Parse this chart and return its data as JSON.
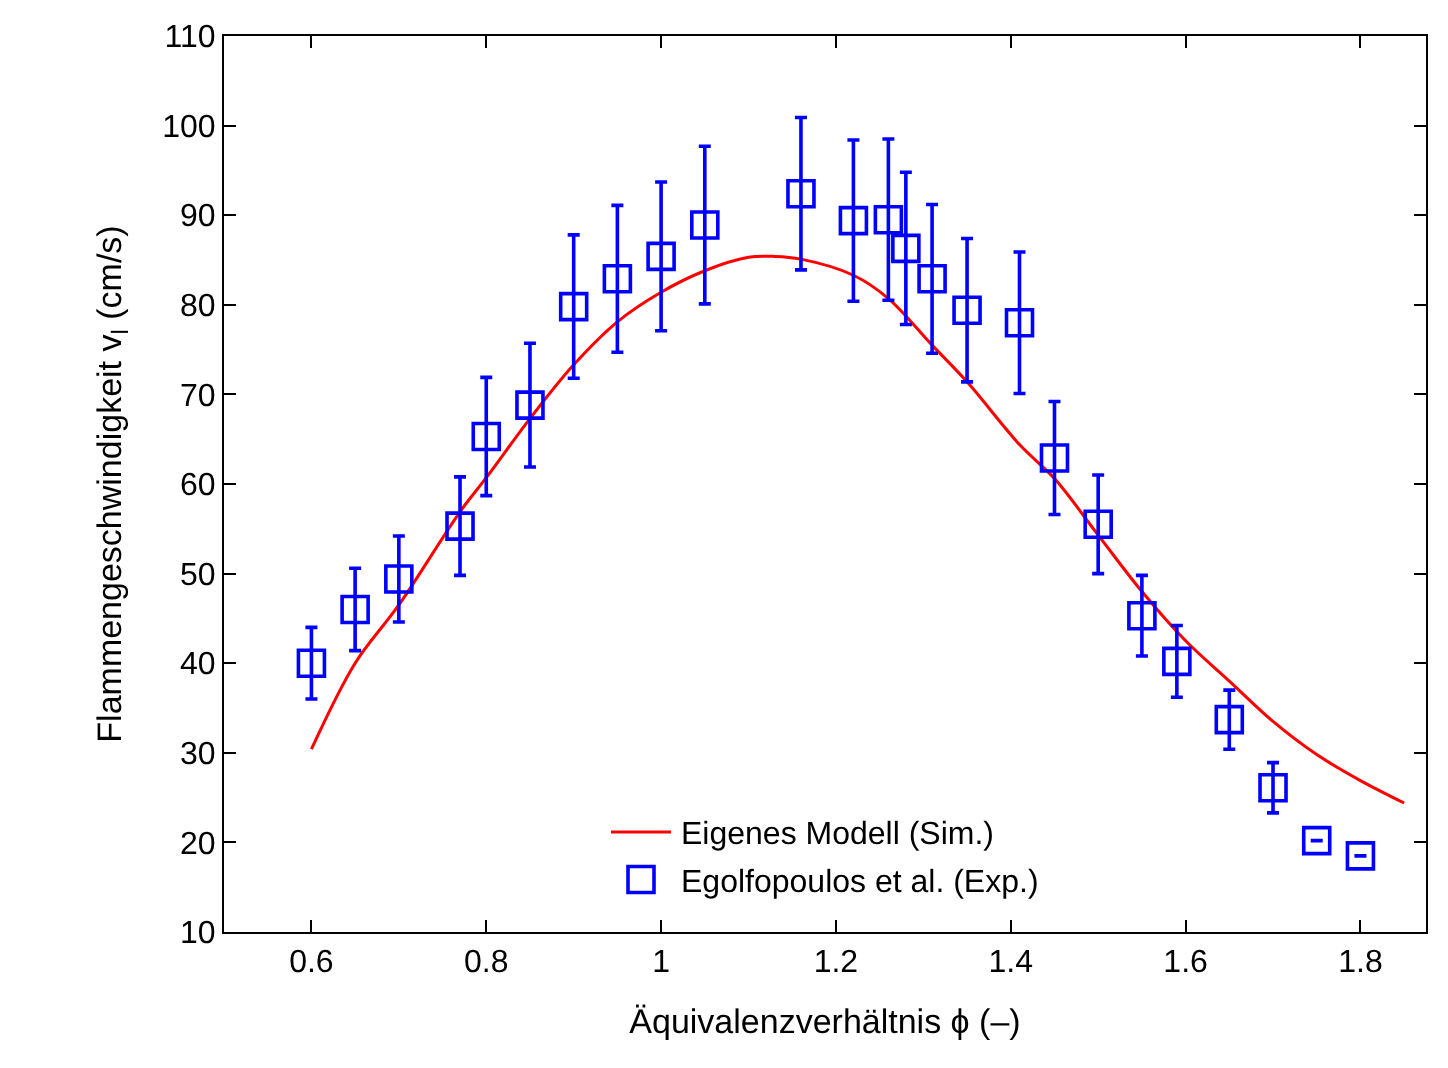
{
  "chart_data": {
    "type": "scatter",
    "xlabel": "Äquivalenzverhältnis ϕ (–)",
    "ylabel": "Flammengeschwindigkeit v$_{l}$ (cm/s)",
    "xlim": [
      0.5,
      1.875
    ],
    "xticks": [
      0.6,
      0.8,
      1,
      1.2,
      1.4,
      1.6,
      1.8
    ],
    "ylim": [
      10,
      110
    ],
    "yticks": [
      10,
      20,
      30,
      40,
      50,
      60,
      70,
      80,
      90,
      100,
      110
    ],
    "grid": false,
    "legend": "bottom",
    "series": [
      {
        "name": "Eigenes Modell (Sim.)",
        "type": "line",
        "color": "#ff0000",
        "marker": "none",
        "line_style": "solid",
        "x": [
          0.6,
          0.65,
          0.7,
          0.77,
          0.8,
          0.85,
          0.9,
          0.95,
          1.0,
          1.05,
          1.1,
          1.13,
          1.16,
          1.22,
          1.26,
          1.31,
          1.35,
          1.41,
          1.45,
          1.5,
          1.55,
          1.6,
          1.65,
          1.7,
          1.75,
          1.8,
          1.85
        ],
        "values": [
          30.4,
          40.0,
          46.5,
          56.9,
          60.7,
          67.3,
          73.3,
          78.1,
          81.4,
          83.8,
          85.3,
          85.4,
          85.1,
          83.3,
          80.7,
          75.5,
          71.4,
          64.4,
          60.6,
          54.3,
          48.0,
          42.5,
          38.0,
          33.5,
          29.8,
          26.9,
          24.4
        ]
      },
      {
        "name": "Egolfopoulos et al. (Exp.)",
        "color": "#0000ff",
        "marker": "square",
        "x": [
          0.6,
          0.65,
          0.7,
          0.77,
          0.8,
          0.85,
          0.9,
          0.95,
          1.0,
          1.05,
          1.16,
          1.22,
          1.26,
          1.28,
          1.31,
          1.35,
          1.41,
          1.45,
          1.5,
          1.55,
          1.59,
          1.65,
          1.7,
          1.75,
          1.8
        ],
        "values": [
          40,
          46,
          49.4,
          55.3,
          65.3,
          68.8,
          79.8,
          82.9,
          85.4,
          88.9,
          92.4,
          89.4,
          89.5,
          86.3,
          82.9,
          79.4,
          78,
          62.9,
          55.5,
          45.3,
          40.2,
          33.7,
          26.1,
          20.2,
          18.5
        ],
        "errors": [
          4,
          4.6,
          4.8,
          5.5,
          6.6,
          6.9,
          8,
          8.2,
          8.3,
          8.8,
          8.5,
          9,
          9,
          8.5,
          8.3,
          8,
          7.9,
          6.3,
          5.5,
          4.5,
          4,
          3.3,
          2.8,
          null,
          null
        ]
      }
    ]
  }
}
